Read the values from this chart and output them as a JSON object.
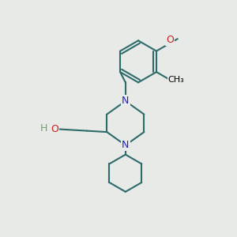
{
  "background_color": "#e8eae8",
  "bond_color": "#2d6b6b",
  "n_color": "#2020cc",
  "o_color": "#cc2020",
  "line_width": 1.5,
  "fig_size": [
    3.0,
    3.0
  ],
  "dpi": 100,
  "xlim": [
    0,
    10
  ],
  "ylim": [
    0,
    10
  ],
  "methoxy_label": "O",
  "methyl_label": "CH₃",
  "oh_h_label": "H",
  "oh_o_label": "O",
  "n_label": "N"
}
